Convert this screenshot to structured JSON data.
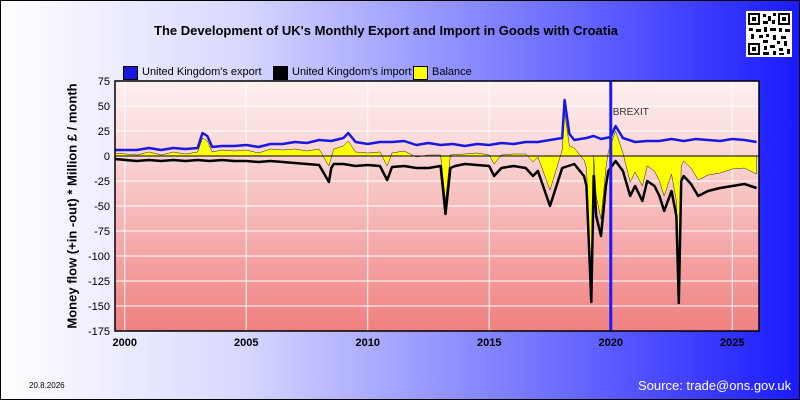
{
  "title": "The Development of UK's Monthly Export and Import in Goods with Croatia",
  "date_stamp": "20.8.2026",
  "source": "Source: trade@ons.gov.uk",
  "qr_icon": "qr-code-icon",
  "chart_data": {
    "type": "line",
    "title": "The Development of UK's Monthly Export and Import in Goods with Croatia",
    "xlabel": "",
    "ylabel": "Money flow (+in -out) * Million £ / month",
    "xlim": [
      1999.6,
      2026.1
    ],
    "ylim": [
      -175,
      75
    ],
    "yticks": [
      75,
      50,
      25,
      0,
      -25,
      -50,
      -75,
      -100,
      -125,
      -150,
      -175
    ],
    "xticks": [
      2000,
      2005,
      2010,
      2015,
      2020,
      2025
    ],
    "grid": true,
    "legend_position": "top",
    "annotations": [
      {
        "label": "BREXIT",
        "x": 2020.0,
        "color": "#1a1aff"
      }
    ],
    "series": [
      {
        "name": "United Kingdom's export",
        "color": "#1818e0",
        "x": [
          1999.6,
          2000.5,
          2001.0,
          2001.5,
          2002.0,
          2002.5,
          2003.0,
          2003.2,
          2003.4,
          2003.6,
          2004.0,
          2004.5,
          2005.0,
          2005.5,
          2006.0,
          2006.5,
          2007.0,
          2007.5,
          2008.0,
          2008.5,
          2009.0,
          2009.2,
          2009.5,
          2010.0,
          2010.5,
          2011.0,
          2011.5,
          2012.0,
          2012.5,
          2013.0,
          2013.5,
          2014.0,
          2014.5,
          2015.0,
          2015.5,
          2016.0,
          2016.5,
          2017.0,
          2017.5,
          2018.0,
          2018.1,
          2018.3,
          2018.5,
          2019.0,
          2019.3,
          2019.6,
          2020.0,
          2020.2,
          2020.5,
          2021.0,
          2021.5,
          2022.0,
          2022.5,
          2023.0,
          2023.5,
          2024.0,
          2024.5,
          2025.0,
          2025.5,
          2026.0
        ],
        "values": [
          6,
          6,
          8,
          6,
          8,
          7,
          8,
          23,
          20,
          9,
          10,
          10,
          11,
          9,
          12,
          12,
          14,
          13,
          16,
          15,
          18,
          23,
          14,
          12,
          14,
          14,
          15,
          11,
          13,
          11,
          12,
          10,
          12,
          11,
          13,
          12,
          14,
          14,
          16,
          18,
          56,
          22,
          16,
          18,
          20,
          17,
          19,
          30,
          18,
          14,
          15,
          15,
          17,
          15,
          17,
          16,
          15,
          17,
          16,
          14
        ]
      },
      {
        "name": "United Kingdom's import",
        "color": "#000000",
        "x": [
          1999.6,
          2000.5,
          2001.0,
          2001.5,
          2002.0,
          2002.5,
          2003.0,
          2003.5,
          2004.0,
          2004.5,
          2005.0,
          2005.5,
          2006.0,
          2006.5,
          2007.0,
          2007.5,
          2008.0,
          2008.4,
          2008.5,
          2008.6,
          2009.0,
          2009.5,
          2010.0,
          2010.5,
          2010.8,
          2011.0,
          2011.5,
          2012.0,
          2012.5,
          2013.0,
          2013.2,
          2013.4,
          2013.6,
          2014.0,
          2014.5,
          2015.0,
          2015.2,
          2015.5,
          2016.0,
          2016.5,
          2016.8,
          2017.0,
          2017.5,
          2018.0,
          2018.5,
          2018.9,
          2019.0,
          2019.2,
          2019.3,
          2019.4,
          2019.6,
          2019.8,
          2019.9,
          2020.2,
          2020.5,
          2020.8,
          2021.0,
          2021.3,
          2021.5,
          2021.8,
          2022.0,
          2022.2,
          2022.5,
          2022.7,
          2022.8,
          2022.9,
          2023.0,
          2023.3,
          2023.6,
          2024.0,
          2024.5,
          2025.0,
          2025.5,
          2026.0
        ],
        "values": [
          -3,
          -5,
          -4,
          -5,
          -4,
          -5,
          -4,
          -5,
          -4,
          -5,
          -5,
          -6,
          -5,
          -6,
          -7,
          -8,
          -9,
          -26,
          -12,
          -8,
          -8,
          -10,
          -9,
          -10,
          -24,
          -11,
          -10,
          -12,
          -12,
          -10,
          -58,
          -12,
          -10,
          -8,
          -9,
          -10,
          -20,
          -12,
          -10,
          -12,
          -20,
          -15,
          -50,
          -12,
          -8,
          -20,
          -30,
          -146,
          -20,
          -60,
          -80,
          -30,
          -15,
          -5,
          -15,
          -40,
          -30,
          -45,
          -25,
          -30,
          -40,
          -55,
          -35,
          -60,
          -147,
          -25,
          -20,
          -28,
          -40,
          -35,
          -32,
          -30,
          -28,
          -32
        ]
      },
      {
        "name": "Balance",
        "color": "#ffff00",
        "x": [
          1999.6,
          2000.5,
          2001.0,
          2001.5,
          2002.0,
          2002.5,
          2003.0,
          2003.2,
          2003.4,
          2003.6,
          2004.0,
          2004.5,
          2005.0,
          2005.5,
          2006.0,
          2006.5,
          2007.0,
          2007.5,
          2008.0,
          2008.4,
          2008.6,
          2009.0,
          2009.2,
          2009.5,
          2010.0,
          2010.5,
          2010.8,
          2011.0,
          2011.5,
          2012.0,
          2012.5,
          2013.0,
          2013.2,
          2013.4,
          2014.0,
          2014.5,
          2015.0,
          2015.2,
          2015.5,
          2016.0,
          2016.5,
          2016.8,
          2017.0,
          2017.5,
          2018.0,
          2018.1,
          2018.3,
          2018.5,
          2018.9,
          2019.0,
          2019.2,
          2019.3,
          2019.4,
          2019.6,
          2019.8,
          2019.9,
          2020.2,
          2020.5,
          2020.8,
          2021.0,
          2021.3,
          2021.5,
          2021.8,
          2022.0,
          2022.2,
          2022.5,
          2022.7,
          2022.8,
          2022.9,
          2023.0,
          2023.3,
          2023.6,
          2024.0,
          2024.5,
          2025.0,
          2025.5,
          2026.0
        ],
        "values": [
          3,
          1,
          4,
          1,
          4,
          2,
          4,
          18,
          15,
          4,
          6,
          5,
          6,
          3,
          7,
          6,
          7,
          5,
          7,
          -10,
          7,
          10,
          15,
          4,
          3,
          4,
          -10,
          3,
          5,
          -1,
          1,
          1,
          -45,
          1,
          2,
          3,
          1,
          -8,
          1,
          2,
          2,
          -6,
          -1,
          -34,
          6,
          44,
          10,
          8,
          -4,
          -12,
          -126,
          0,
          -40,
          -63,
          -12,
          4,
          25,
          3,
          -26,
          -16,
          -30,
          -10,
          -15,
          -25,
          -40,
          -18,
          -45,
          -132,
          -10,
          -5,
          -12,
          -24,
          -19,
          -17,
          -13,
          -12,
          -18
        ]
      }
    ]
  }
}
